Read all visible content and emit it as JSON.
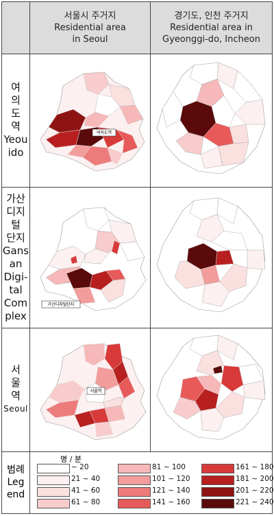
{
  "header": {
    "seoul_ko": "서울시 주거지",
    "seoul_en_1": "Residential area",
    "seoul_en_2": "in Seoul",
    "gyeonggi_ko": "경기도, 인천 주거지",
    "gyeonggi_en_1": "Residential area in",
    "gyeonggi_en_2": "Gyeonggi-do, Incheon"
  },
  "rows": [
    {
      "label_ko": "여\n의\n도\n역",
      "label_en": "Yeou\nido",
      "station_tag": "여의도역"
    },
    {
      "label_ko": "가산\n디지\n털\n단지",
      "label_en": "Gans\nan\nDigi-\ntal\nCom\nplex",
      "station_tag": "가산디지털단지"
    },
    {
      "label_ko": "서\n울\n역",
      "label_en": "Seoul",
      "station_tag": "서울역"
    }
  ],
  "legend": {
    "title": "범례\nLeg\nend",
    "unit": "명 / 분",
    "items": [
      {
        "label": "~  20",
        "color": "#ffffff"
      },
      {
        "label": "21  ~  40",
        "color": "#fdf0f0"
      },
      {
        "label": "41  ~  60",
        "color": "#fbe0e0"
      },
      {
        "label": "61  ~  80",
        "color": "#f8cccc"
      },
      {
        "label": "81  ~  100",
        "color": "#f6b8b8"
      },
      {
        "label": "101  ~  120",
        "color": "#f29c9c"
      },
      {
        "label": "121  ~  140",
        "color": "#ee7b7b"
      },
      {
        "label": "141  ~  160",
        "color": "#e85a5a"
      },
      {
        "label": "161  ~  180",
        "color": "#d83a3a"
      },
      {
        "label": "181  ~  200",
        "color": "#b82020"
      },
      {
        "label": "201  ~  220",
        "color": "#8e1414"
      },
      {
        "label": "221  ~  240",
        "color": "#5a0a0a"
      }
    ]
  }
}
